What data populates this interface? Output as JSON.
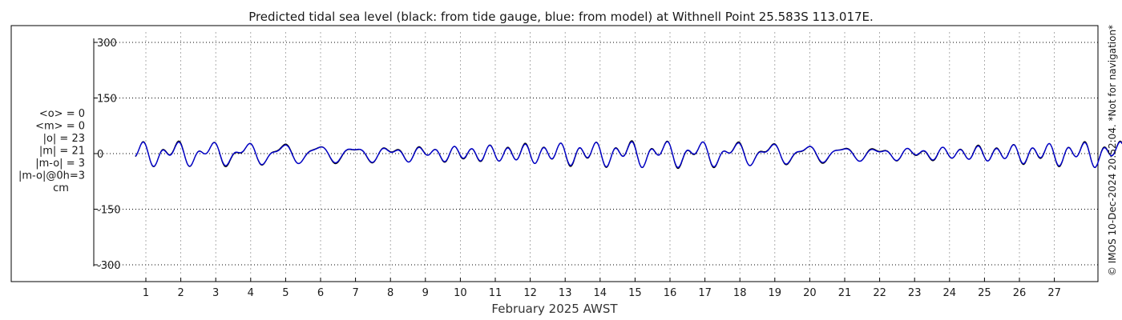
{
  "chart_data": {
    "type": "line",
    "title": "Predicted tidal sea level (black: from tide gauge, blue: from model) at Withnell Point 25.583S 113.017E.",
    "xlabel": "February 2025 AWST",
    "ylabel": "",
    "x_ticks": [
      "1",
      "2",
      "3",
      "4",
      "5",
      "6",
      "7",
      "8",
      "9",
      "10",
      "11",
      "12",
      "13",
      "14",
      "15",
      "16",
      "17",
      "18",
      "19",
      "20",
      "21",
      "22",
      "23",
      "24",
      "25",
      "26",
      "27"
    ],
    "y_ticks": [
      300,
      150,
      0,
      -150,
      -300
    ],
    "y_tick_labels": [
      "300",
      "150",
      "0",
      "-150",
      "-300"
    ],
    "ylim": [
      -300,
      300
    ],
    "xlim": [
      0,
      28
    ],
    "grid": true,
    "legend": "",
    "series": [
      {
        "color": "#000000"
      },
      {
        "color": "#0000cc"
      }
    ],
    "stats": [
      "<o> = 0",
      "<m> = 0",
      "|o| = 23",
      "|m| = 21",
      "|m-o| = 3",
      "|m-o|@0h=3",
      "cm"
    ],
    "credit": "© IMOS 10-Dec-2024 20:52:04. *Not for navigation*"
  }
}
